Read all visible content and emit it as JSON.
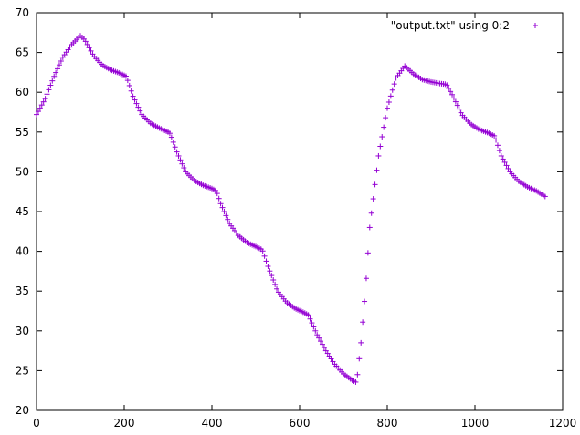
{
  "chart_data": {
    "type": "scatter",
    "title": "",
    "xlabel": "",
    "ylabel": "",
    "xlim": [
      0,
      1200
    ],
    "ylim": [
      20,
      70
    ],
    "x_ticks": [
      0,
      200,
      400,
      600,
      800,
      1000,
      1200
    ],
    "y_ticks": [
      20,
      25,
      30,
      35,
      40,
      45,
      50,
      55,
      60,
      65,
      70
    ],
    "grid": false,
    "legend_position": "top-right",
    "series": [
      {
        "name": "\"output.txt\" using 0:2",
        "color": "#9400d3",
        "marker": "plus",
        "x_start": 0,
        "x_step": 4,
        "keypoints": [
          [
            0,
            57.2
          ],
          [
            20,
            59.2
          ],
          [
            40,
            62.0
          ],
          [
            60,
            64.4
          ],
          [
            80,
            66.0
          ],
          [
            100,
            67.1
          ],
          [
            110,
            66.6
          ],
          [
            130,
            64.6
          ],
          [
            150,
            63.4
          ],
          [
            170,
            62.8
          ],
          [
            190,
            62.4
          ],
          [
            205,
            62.0
          ],
          [
            220,
            59.5
          ],
          [
            240,
            57.2
          ],
          [
            260,
            56.1
          ],
          [
            280,
            55.5
          ],
          [
            300,
            55.0
          ],
          [
            305,
            54.8
          ],
          [
            320,
            52.5
          ],
          [
            340,
            50.0
          ],
          [
            360,
            48.9
          ],
          [
            380,
            48.3
          ],
          [
            400,
            47.9
          ],
          [
            410,
            47.6
          ],
          [
            420,
            46.0
          ],
          [
            440,
            43.5
          ],
          [
            460,
            42.0
          ],
          [
            480,
            41.1
          ],
          [
            500,
            40.6
          ],
          [
            515,
            40.2
          ],
          [
            530,
            37.8
          ],
          [
            550,
            35.0
          ],
          [
            570,
            33.6
          ],
          [
            590,
            32.8
          ],
          [
            610,
            32.3
          ],
          [
            620,
            32.0
          ],
          [
            640,
            29.5
          ],
          [
            660,
            27.5
          ],
          [
            680,
            25.8
          ],
          [
            700,
            24.6
          ],
          [
            720,
            23.8
          ],
          [
            730,
            23.5
          ],
          [
            740,
            28.5
          ],
          [
            750,
            35.0
          ],
          [
            760,
            43.0
          ],
          [
            780,
            52.0
          ],
          [
            800,
            58.0
          ],
          [
            820,
            61.8
          ],
          [
            840,
            63.3
          ],
          [
            860,
            62.3
          ],
          [
            880,
            61.6
          ],
          [
            900,
            61.3
          ],
          [
            920,
            61.1
          ],
          [
            935,
            61.0
          ],
          [
            950,
            59.5
          ],
          [
            970,
            57.2
          ],
          [
            990,
            56.0
          ],
          [
            1010,
            55.3
          ],
          [
            1030,
            54.9
          ],
          [
            1045,
            54.5
          ],
          [
            1060,
            52.0
          ],
          [
            1080,
            50.0
          ],
          [
            1100,
            48.8
          ],
          [
            1120,
            48.1
          ],
          [
            1140,
            47.6
          ],
          [
            1160,
            46.9
          ]
        ]
      }
    ]
  }
}
